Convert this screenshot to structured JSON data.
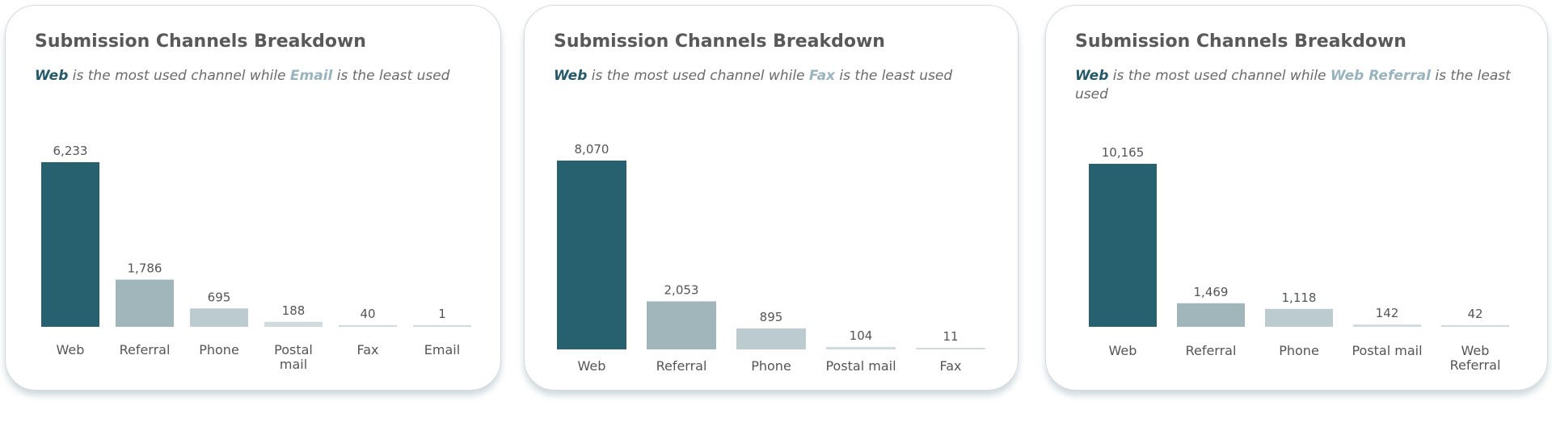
{
  "cards": [
    {
      "title": "Submission Channels Breakdown",
      "subtitle": {
        "most": "Web",
        "middle": " is the most used channel while ",
        "least": "Email",
        "end": " is the least used"
      }
    },
    {
      "title": "Submission Channels Breakdown",
      "subtitle": {
        "most": "Web",
        "middle": " is the most used channel while ",
        "least": "Fax",
        "end": " is the least used"
      }
    },
    {
      "title": "Submission Channels Breakdown",
      "subtitle": {
        "most": "Web",
        "middle": " is the most used channel while ",
        "least": "Web Referral",
        "end": " is the least used"
      }
    }
  ],
  "colors": {
    "most_used": "#27616f",
    "second": "#a1b6bb",
    "third": "#bccbcf",
    "rest": "#d0dbde"
  },
  "chart_data": [
    {
      "type": "bar",
      "title": "Submission Channels Breakdown",
      "categories": [
        [
          "Web"
        ],
        [
          "Referral"
        ],
        [
          "Phone"
        ],
        [
          "Postal",
          "mail"
        ],
        [
          "Fax"
        ],
        [
          "Email"
        ]
      ],
      "values": [
        6233,
        1786,
        695,
        188,
        40,
        1
      ],
      "value_labels": [
        "6,233",
        "1,786",
        "695",
        "188",
        "40",
        "1"
      ],
      "ylim": [
        0,
        6233
      ],
      "grid": false,
      "legend": "none"
    },
    {
      "type": "bar",
      "title": "Submission Channels Breakdown",
      "categories": [
        [
          "Web"
        ],
        [
          "Referral"
        ],
        [
          "Phone"
        ],
        [
          "Postal mail"
        ],
        [
          "Fax"
        ]
      ],
      "values": [
        8070,
        2053,
        895,
        104,
        11
      ],
      "value_labels": [
        "8,070",
        "2,053",
        "895",
        "104",
        "11"
      ],
      "ylim": [
        0,
        8070
      ],
      "grid": false,
      "legend": "none"
    },
    {
      "type": "bar",
      "title": "Submission Channels Breakdown",
      "categories": [
        [
          "Web"
        ],
        [
          "Referral"
        ],
        [
          "Phone"
        ],
        [
          "Postal mail"
        ],
        [
          "Web",
          "Referral"
        ]
      ],
      "values": [
        10165,
        1469,
        1118,
        142,
        42
      ],
      "value_labels": [
        "10,165",
        "1,469",
        "1,118",
        "142",
        "42"
      ],
      "ylim": [
        0,
        10165
      ],
      "grid": false,
      "legend": "none"
    }
  ]
}
